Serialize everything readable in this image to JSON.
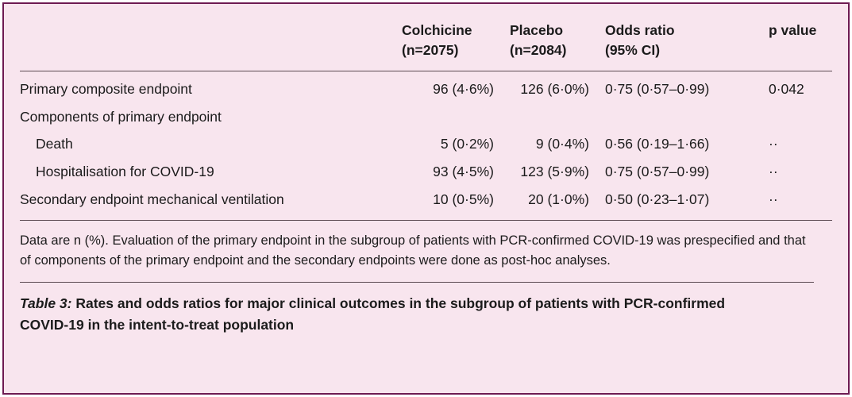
{
  "colors": {
    "panel_background": "#f8e5ee",
    "panel_border": "#6e1b52",
    "rule_line": "#5c4a52",
    "text": "#1b1b1b"
  },
  "table": {
    "header": {
      "colchicine_line1": "Colchicine",
      "colchicine_line2": "(n=2075)",
      "placebo_line1": "Placebo",
      "placebo_line2": "(n=2084)",
      "odds_line1": "Odds ratio",
      "odds_line2": "(95% CI)",
      "p_value": "p value"
    },
    "rows": [
      {
        "label": "Primary composite endpoint",
        "colchicine": "96 (4·6%)",
        "placebo": "126 (6·0%)",
        "odds_ratio": "0·75 (0·57–0·99)",
        "p_value": "0·042"
      },
      {
        "label": "Components of primary endpoint",
        "colchicine": "",
        "placebo": "",
        "odds_ratio": "",
        "p_value": ""
      },
      {
        "label": "Death",
        "colchicine": "5 (0·2%)",
        "placebo": "9 (0·4%)",
        "odds_ratio": "0·56 (0·19–1·66)",
        "p_value": "··"
      },
      {
        "label": "Hospitalisation for COVID-19",
        "colchicine": "93 (4·5%)",
        "placebo": "123 (5·9%)",
        "odds_ratio": "0·75 (0·57–0·99)",
        "p_value": "··"
      },
      {
        "label": "Secondary endpoint mechanical ventilation",
        "colchicine": "10 (0·5%)",
        "placebo": "20 (1·0%)",
        "odds_ratio": "0·50 (0·23–1·07)",
        "p_value": "··"
      }
    ],
    "footnote": "Data are n (%). Evaluation of the primary endpoint in the subgroup of patients with PCR-confirmed COVID-19 was prespecified and that of components of the primary endpoint and the secondary endpoints were done as post-hoc analyses.",
    "caption": {
      "label": "Table 3:",
      "text": " Rates and odds ratios for major clinical outcomes in the subgroup of patients with PCR-confirmed COVID-19 in the intent-to-treat population"
    }
  }
}
